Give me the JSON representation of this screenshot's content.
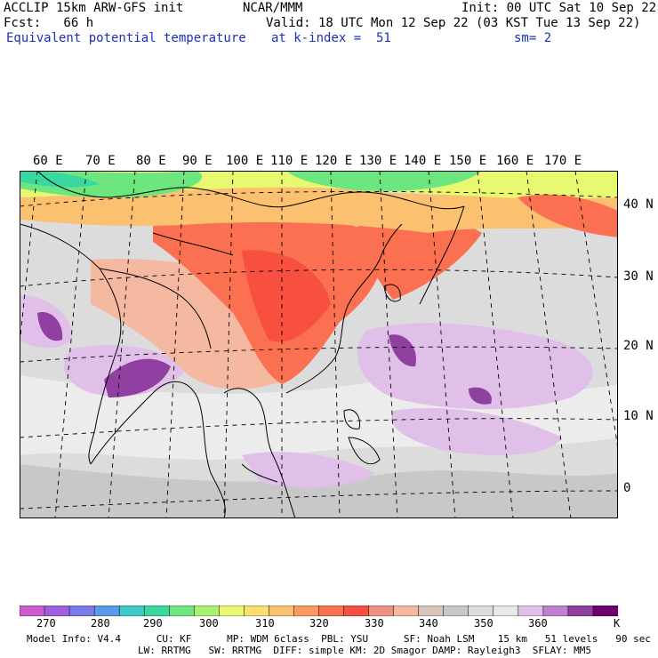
{
  "header": {
    "line1_left": "ACCLIP 15km ARW-GFS init",
    "line1_center": "NCAR/MMM",
    "line1_right": "Init: 00 UTC Sat 10 Sep 22",
    "line2_left": "Fcst:   66 h",
    "line2_right": "Valid: 18 UTC Mon 12 Sep 22 (03 KST Tue 13 Sep 22)",
    "line3_left": "Equivalent potential temperature",
    "line3_center": "at k-index =  51",
    "line3_right": "sm= 2"
  },
  "longitude_labels": [
    "60 E",
    "70 E",
    "80 E",
    "90 E",
    "100 E",
    "110 E",
    "120 E",
    "130 E",
    "140 E",
    "150 E",
    "160 E",
    "170 E"
  ],
  "latitude_labels": [
    "40 N",
    "30 N",
    "20 N",
    "10 N",
    "0"
  ],
  "colorbar": {
    "colors": [
      "#cf5ad0",
      "#9f5fe0",
      "#7a7ae8",
      "#5a9ae8",
      "#3fc8c8",
      "#3ad8a0",
      "#6ee680",
      "#a8f070",
      "#e8f870",
      "#fbe070",
      "#fbc070",
      "#fb9a60",
      "#fb7050",
      "#f85040",
      "#f09080",
      "#f5b8a0",
      "#d8c4b8",
      "#c8c8c8",
      "#dcdcdc",
      "#e8e8e8",
      "#e0c0e8",
      "#c080d0",
      "#9040a0",
      "#700070"
    ],
    "ticks": [
      "270",
      "280",
      "290",
      "300",
      "310",
      "320",
      "330",
      "340",
      "350",
      "360"
    ],
    "unit": "K"
  },
  "footer": {
    "line1": "Model Info: V4.4      CU: KF      MP: WDM 6class  PBL: YSU      SF: Noah LSM    15 km   51 levels   90 sec",
    "line2": "LW: RRTMG   SW: RRTMG  DIFF: simple KM: 2D Smagor DAMP: Rayleigh3  SFLAY: MM5"
  },
  "map_field": {
    "regions": [
      "north-band",
      "china-warm",
      "west-pacific-moist",
      "indian-ocean",
      "southeast-asia"
    ]
  }
}
